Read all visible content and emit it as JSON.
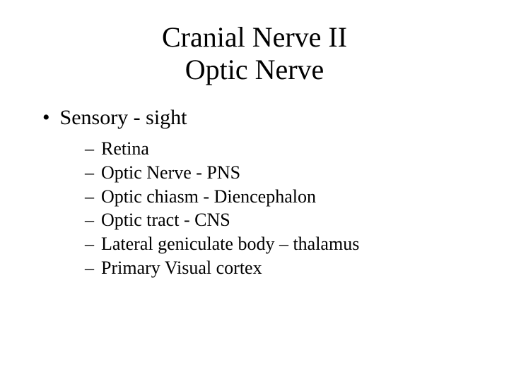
{
  "title_line1": "Cranial Nerve II",
  "title_line2": "Optic Nerve",
  "main_bullet": "Sensory - sight",
  "sub_items": {
    "0": "Retina",
    "1": "Optic Nerve - PNS",
    "2": "Optic chiasm - Diencephalon",
    "3": "Optic tract - CNS",
    "4": "Lateral geniculate body – thalamus",
    "5": "Primary Visual cortex"
  },
  "colors": {
    "background": "#ffffff",
    "text": "#000000"
  },
  "fonts": {
    "family": "Times New Roman",
    "title_size": 40,
    "bullet_size": 30,
    "sub_size": 26
  }
}
